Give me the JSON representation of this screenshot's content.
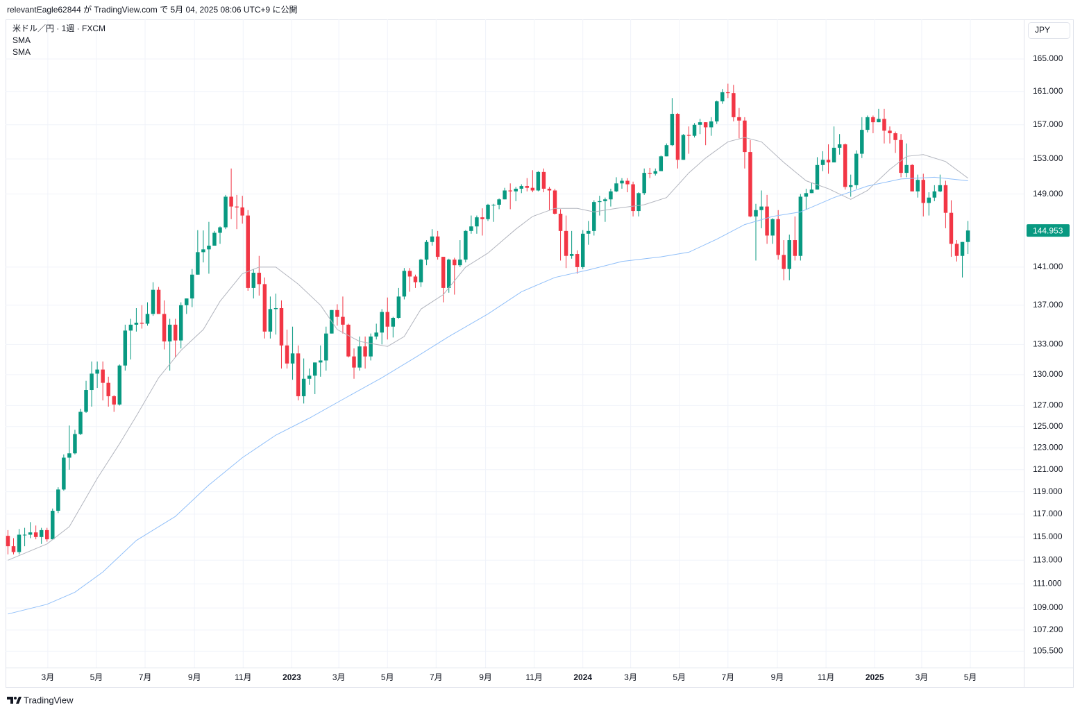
{
  "header": "relevantEagle62844 が TradingView.com で 5月 04, 2025 08:06 UTC+9 に公開",
  "footer_brand": "TradingView",
  "chart_data": {
    "type": "candlestick",
    "title": "米ドル／円 · 1週 · FXCM",
    "currency": "JPY",
    "up_color": "#089981",
    "down_color": "#f23645",
    "log_scale": true,
    "grid": true,
    "last_price_label": "144.953",
    "x": [
      "2022-01-10",
      "2022-01-17",
      "2022-01-24",
      "2022-01-31",
      "2022-02-07",
      "2022-02-14",
      "2022-02-21",
      "2022-02-28",
      "2022-03-07",
      "2022-03-14",
      "2022-03-21",
      "2022-03-28",
      "2022-04-04",
      "2022-04-11",
      "2022-04-18",
      "2022-04-25",
      "2022-05-02",
      "2022-05-09",
      "2022-05-16",
      "2022-05-23",
      "2022-05-30",
      "2022-06-06",
      "2022-06-13",
      "2022-06-20",
      "2022-06-27",
      "2022-07-04",
      "2022-07-11",
      "2022-07-18",
      "2022-07-25",
      "2022-08-01",
      "2022-08-08",
      "2022-08-15",
      "2022-08-22",
      "2022-08-29",
      "2022-09-05",
      "2022-09-12",
      "2022-09-19",
      "2022-09-26",
      "2022-10-03",
      "2022-10-10",
      "2022-10-17",
      "2022-10-24",
      "2022-10-31",
      "2022-11-07",
      "2022-11-14",
      "2022-11-21",
      "2022-11-28",
      "2022-12-05",
      "2022-12-12",
      "2022-12-19",
      "2022-12-26",
      "2023-01-02",
      "2023-01-09",
      "2023-01-16",
      "2023-01-23",
      "2023-01-30",
      "2023-02-06",
      "2023-02-13",
      "2023-02-20",
      "2023-02-27",
      "2023-03-06",
      "2023-03-13",
      "2023-03-20",
      "2023-03-27",
      "2023-04-03",
      "2023-04-10",
      "2023-04-17",
      "2023-04-24",
      "2023-05-01",
      "2023-05-08",
      "2023-05-15",
      "2023-05-22",
      "2023-05-29",
      "2023-06-05",
      "2023-06-12",
      "2023-06-19",
      "2023-06-26",
      "2023-07-03",
      "2023-07-10",
      "2023-07-17",
      "2023-07-24",
      "2023-07-31",
      "2023-08-07",
      "2023-08-14",
      "2023-08-21",
      "2023-08-28",
      "2023-09-04",
      "2023-09-11",
      "2023-09-18",
      "2023-09-25",
      "2023-10-02",
      "2023-10-09",
      "2023-10-16",
      "2023-10-23",
      "2023-10-30",
      "2023-11-06",
      "2023-11-13",
      "2023-11-20",
      "2023-11-27",
      "2023-12-04",
      "2023-12-11",
      "2023-12-18",
      "2023-12-25",
      "2024-01-01",
      "2024-01-08",
      "2024-01-15",
      "2024-01-22",
      "2024-01-29",
      "2024-02-05",
      "2024-02-12",
      "2024-02-19",
      "2024-02-26",
      "2024-03-04",
      "2024-03-11",
      "2024-03-18",
      "2024-03-25",
      "2024-04-01",
      "2024-04-08",
      "2024-04-15",
      "2024-04-22",
      "2024-04-29",
      "2024-05-06",
      "2024-05-13",
      "2024-05-20",
      "2024-05-27",
      "2024-06-03",
      "2024-06-10",
      "2024-06-17",
      "2024-06-24",
      "2024-07-01",
      "2024-07-08",
      "2024-07-15",
      "2024-07-22",
      "2024-07-29",
      "2024-08-05",
      "2024-08-12",
      "2024-08-19",
      "2024-08-26",
      "2024-09-02",
      "2024-09-09",
      "2024-09-16",
      "2024-09-23",
      "2024-09-30",
      "2024-10-07",
      "2024-10-14",
      "2024-10-21",
      "2024-10-28",
      "2024-11-04",
      "2024-11-11",
      "2024-11-18",
      "2024-11-25",
      "2024-12-02",
      "2024-12-09",
      "2024-12-16",
      "2024-12-23",
      "2024-12-30",
      "2025-01-06",
      "2025-01-13",
      "2025-01-20",
      "2025-01-27",
      "2025-02-03",
      "2025-02-10",
      "2025-02-17",
      "2025-02-24",
      "2025-03-03",
      "2025-03-10",
      "2025-03-17",
      "2025-03-24",
      "2025-03-31",
      "2025-04-07",
      "2025-04-14",
      "2025-04-21",
      "2025-04-28"
    ],
    "open": [
      115.1,
      114.2,
      113.7,
      115.2,
      115.2,
      115.4,
      115.0,
      115.6,
      114.8,
      117.3,
      119.2,
      122.1,
      122.5,
      124.3,
      126.4,
      128.5,
      130.1,
      130.5,
      129.2,
      127.9,
      127.1,
      130.9,
      134.4,
      135.0,
      135.2,
      135.1,
      136.1,
      138.6,
      136.1,
      133.3,
      135.0,
      133.4,
      137.0,
      137.7,
      140.2,
      142.6,
      142.9,
      143.3,
      144.7,
      145.3,
      148.7,
      147.6,
      147.5,
      146.6,
      138.8,
      140.4,
      139.2,
      134.3,
      136.6,
      136.7,
      132.9,
      131.1,
      132.1,
      127.9,
      129.6,
      129.9,
      131.2,
      131.4,
      134.1,
      136.5,
      135.8,
      135.0,
      131.8,
      130.7,
      132.8,
      131.8,
      133.8,
      134.2,
      136.3,
      134.8,
      135.7,
      137.9,
      140.6,
      140.0,
      139.4,
      141.8,
      143.7,
      144.3,
      142.1,
      138.8,
      141.8,
      141.2,
      141.8,
      144.9,
      145.4,
      146.4,
      146.2,
      147.8,
      147.8,
      148.4,
      149.4,
      149.3,
      149.6,
      149.9,
      149.7,
      149.4,
      151.5,
      149.6,
      149.4,
      146.8,
      144.9,
      142.2,
      142.4,
      141.0,
      144.6,
      144.9,
      148.1,
      148.2,
      148.4,
      149.3,
      150.2,
      150.5,
      150.1,
      147.1,
      149.1,
      151.4,
      151.3,
      151.6,
      153.3,
      154.6,
      158.3,
      152.9,
      155.8,
      155.7,
      157.0,
      157.3,
      156.7,
      157.4,
      159.8,
      160.9,
      160.8,
      157.9,
      157.5,
      153.8,
      146.5,
      147.2,
      147.6,
      144.4,
      146.2,
      142.3,
      140.8,
      143.9,
      142.2,
      148.7,
      149.1,
      149.5,
      152.3,
      152.9,
      152.6,
      154.3,
      154.7,
      149.8,
      150.0,
      153.6,
      156.4,
      157.9,
      157.3,
      157.7,
      156.3,
      156.0,
      155.2,
      151.4,
      152.3,
      149.3,
      150.6,
      148.0,
      148.6,
      149.3,
      150.0,
      146.9,
      143.5,
      142.2,
      143.7
    ],
    "high": [
      115.6,
      114.9,
      115.7,
      115.8,
      116.3,
      116.0,
      115.8,
      115.8,
      117.5,
      119.4,
      122.4,
      125.1,
      124.7,
      126.7,
      129.4,
      131.3,
      131.3,
      131.3,
      129.8,
      128.0,
      131.0,
      135.0,
      135.6,
      136.7,
      137.0,
      137.3,
      139.4,
      138.9,
      137.5,
      135.6,
      135.6,
      137.3,
      137.7,
      140.8,
      144.99,
      144.96,
      145.9,
      144.9,
      145.4,
      148.9,
      151.9,
      148.9,
      148.8,
      147.2,
      140.8,
      142.2,
      139.9,
      137.9,
      138.2,
      137.5,
      134.5,
      134.8,
      132.9,
      131.6,
      130.6,
      131.2,
      132.9,
      134.8,
      136.5,
      137.1,
      137.9,
      135.1,
      132.6,
      133.8,
      133.8,
      134.1,
      135.1,
      136.6,
      137.8,
      135.8,
      138.8,
      140.9,
      140.9,
      140.2,
      141.9,
      143.9,
      145.1,
      144.9,
      142.1,
      141.9,
      142.0,
      143.9,
      145.0,
      146.6,
      146.6,
      147.4,
      147.9,
      147.9,
      148.5,
      149.7,
      150.2,
      149.8,
      150.1,
      150.8,
      151.7,
      151.6,
      151.9,
      149.8,
      149.6,
      147.3,
      146.6,
      144.9,
      142.8,
      145.0,
      146.0,
      148.3,
      148.8,
      148.6,
      149.6,
      150.9,
      150.8,
      150.8,
      150.4,
      149.2,
      151.9,
      151.97,
      151.9,
      153.4,
      154.8,
      160.2,
      158.4,
      155.9,
      156.8,
      157.2,
      157.7,
      157.3,
      157.9,
      159.9,
      161.3,
      161.95,
      161.8,
      159.0,
      157.9,
      155.2,
      147.9,
      149.4,
      148.9,
      146.3,
      147.2,
      143.9,
      144.5,
      146.5,
      149.0,
      149.6,
      150.3,
      153.2,
      153.9,
      154.7,
      156.8,
      155.9,
      154.8,
      151.2,
      154.0,
      157.9,
      158.1,
      158.1,
      158.9,
      158.9,
      156.8,
      156.2,
      155.9,
      154.8,
      152.4,
      151.2,
      151.3,
      149.2,
      150.0,
      151.2,
      150.5,
      148.3,
      143.9,
      143.7,
      146.0
    ],
    "low": [
      113.5,
      113.5,
      113.5,
      114.2,
      114.9,
      114.8,
      114.4,
      114.6,
      114.8,
      117.1,
      119.1,
      121.0,
      122.4,
      124.2,
      126.3,
      126.9,
      128.7,
      127.5,
      126.9,
      126.4,
      127.0,
      130.4,
      131.5,
      134.3,
      134.6,
      134.9,
      135.9,
      136.5,
      132.5,
      130.4,
      131.7,
      132.6,
      136.1,
      136.8,
      140.2,
      141.5,
      140.3,
      143.3,
      143.5,
      145.1,
      146.2,
      145.1,
      145.7,
      138.5,
      137.7,
      138.0,
      133.6,
      133.6,
      134.0,
      130.6,
      130.6,
      129.5,
      127.5,
      127.2,
      129.0,
      128.1,
      129.8,
      130.4,
      134.1,
      134.9,
      134.1,
      131.7,
      129.6,
      130.4,
      130.6,
      131.4,
      133.5,
      133.0,
      133.5,
      133.7,
      135.6,
      137.6,
      138.4,
      138.8,
      138.9,
      141.2,
      143.3,
      141.8,
      137.3,
      138.3,
      138.1,
      141.0,
      141.5,
      144.6,
      144.6,
      144.4,
      146.0,
      145.9,
      147.3,
      148.4,
      147.3,
      148.2,
      149.1,
      149.3,
      149.2,
      149.3,
      149.2,
      147.2,
      146.7,
      141.7,
      140.9,
      141.9,
      140.3,
      140.8,
      143.4,
      144.4,
      146.6,
      145.9,
      147.6,
      149.2,
      149.6,
      149.2,
      146.5,
      146.5,
      148.9,
      150.8,
      151.1,
      151.6,
      153.3,
      154.5,
      151.9,
      152.9,
      153.6,
      155.5,
      155.9,
      154.6,
      155.7,
      157.1,
      159.5,
      160.2,
      157.4,
      155.4,
      151.9,
      146.4,
      141.7,
      145.2,
      143.5,
      143.5,
      141.8,
      139.6,
      139.6,
      141.7,
      141.7,
      147.3,
      149.1,
      149.5,
      151.6,
      151.3,
      152.6,
      153.5,
      149.5,
      148.7,
      149.6,
      153.1,
      156.1,
      156.0,
      157.3,
      154.8,
      154.8,
      153.7,
      150.9,
      150.9,
      149.3,
      148.6,
      146.5,
      146.6,
      148.2,
      149.2,
      145.2,
      142.1,
      141.6,
      139.9,
      142.4
    ],
    "close": [
      114.2,
      113.7,
      115.2,
      115.2,
      115.4,
      115.0,
      115.6,
      114.8,
      117.3,
      119.2,
      122.1,
      122.5,
      124.3,
      126.4,
      128.5,
      130.1,
      130.5,
      129.2,
      127.9,
      127.1,
      130.9,
      134.4,
      135.0,
      135.2,
      135.1,
      136.1,
      138.6,
      136.1,
      133.3,
      135.0,
      133.4,
      137.0,
      137.7,
      140.2,
      142.6,
      142.9,
      143.3,
      144.7,
      145.3,
      148.7,
      147.6,
      147.5,
      146.6,
      138.8,
      140.4,
      139.2,
      134.3,
      136.6,
      136.7,
      132.9,
      131.1,
      132.1,
      127.9,
      129.6,
      129.9,
      131.2,
      131.4,
      134.1,
      136.5,
      135.8,
      135.0,
      131.8,
      130.7,
      132.8,
      131.8,
      133.8,
      134.2,
      136.3,
      134.8,
      135.7,
      137.9,
      140.6,
      140.0,
      139.4,
      141.8,
      143.7,
      144.3,
      142.1,
      138.8,
      141.8,
      141.2,
      141.8,
      144.9,
      145.4,
      146.4,
      146.2,
      147.8,
      147.8,
      148.4,
      149.4,
      149.3,
      149.6,
      149.9,
      149.7,
      149.4,
      151.5,
      149.6,
      149.4,
      146.8,
      144.9,
      142.2,
      142.4,
      141.0,
      144.6,
      144.9,
      148.1,
      148.2,
      148.4,
      149.3,
      150.2,
      150.5,
      150.1,
      147.1,
      149.1,
      151.4,
      151.3,
      151.6,
      153.3,
      154.6,
      158.3,
      152.9,
      155.8,
      155.7,
      157.0,
      157.3,
      156.7,
      157.4,
      159.8,
      160.9,
      160.8,
      157.9,
      157.5,
      153.8,
      146.5,
      147.2,
      147.6,
      144.4,
      146.2,
      142.3,
      140.8,
      143.9,
      142.2,
      148.7,
      149.1,
      149.5,
      152.3,
      152.9,
      152.6,
      154.3,
      154.7,
      149.8,
      150.0,
      153.6,
      156.4,
      157.9,
      157.3,
      157.7,
      156.3,
      156.0,
      155.2,
      151.4,
      152.3,
      149.3,
      150.6,
      148.0,
      148.6,
      149.3,
      150.0,
      146.9,
      143.5,
      142.2,
      143.7,
      144.953
    ],
    "lines": [
      {
        "name": "SMA",
        "color": "#b2b5be",
        "x": [
          "2022-01-10",
          "2022-02-28",
          "2022-03-28",
          "2022-05-02",
          "2022-05-30",
          "2022-06-20",
          "2022-07-18",
          "2022-08-15",
          "2022-09-12",
          "2022-10-03",
          "2022-10-31",
          "2022-11-21",
          "2022-12-12",
          "2023-01-09",
          "2023-02-06",
          "2023-02-27",
          "2023-03-27",
          "2023-05-01",
          "2023-05-22",
          "2023-06-12",
          "2023-07-10",
          "2023-08-07",
          "2023-09-04",
          "2023-10-09",
          "2023-10-30",
          "2023-11-27",
          "2023-12-25",
          "2024-01-15",
          "2024-02-12",
          "2024-03-18",
          "2024-04-15",
          "2024-05-13",
          "2024-06-03",
          "2024-07-01",
          "2024-07-22",
          "2024-08-12",
          "2024-09-09",
          "2024-10-07",
          "2024-11-04",
          "2024-12-02",
          "2024-12-23",
          "2025-01-20",
          "2025-02-10",
          "2025-03-03",
          "2025-03-31",
          "2025-04-28"
        ],
        "values": [
          113.0,
          114.4,
          115.9,
          120.2,
          123.4,
          126.0,
          129.7,
          132.4,
          134.5,
          137.4,
          140.3,
          141.0,
          141.0,
          139.2,
          137.0,
          134.5,
          133.3,
          132.8,
          133.8,
          136.6,
          138.1,
          141.0,
          142.5,
          145.1,
          146.5,
          147.4,
          147.4,
          147.0,
          147.4,
          147.8,
          148.6,
          151.4,
          153.1,
          155.0,
          155.5,
          155.0,
          152.6,
          150.5,
          149.6,
          148.4,
          149.4,
          151.8,
          153.3,
          153.5,
          152.7,
          150.8
        ]
      },
      {
        "name": "SMA",
        "color": "#90bff9",
        "x": [
          "2022-01-10",
          "2022-02-28",
          "2022-04-04",
          "2022-05-09",
          "2022-06-20",
          "2022-08-08",
          "2022-09-19",
          "2022-10-31",
          "2022-12-12",
          "2023-01-23",
          "2023-03-13",
          "2023-04-24",
          "2023-06-05",
          "2023-07-17",
          "2023-09-04",
          "2023-10-16",
          "2023-11-27",
          "2024-01-08",
          "2024-02-19",
          "2024-04-08",
          "2024-05-13",
          "2024-06-17",
          "2024-07-22",
          "2024-08-26",
          "2024-09-30",
          "2024-11-11",
          "2024-12-23",
          "2025-02-03",
          "2025-03-17",
          "2025-04-28"
        ],
        "values": [
          108.5,
          109.3,
          110.3,
          112.0,
          114.7,
          116.8,
          119.6,
          122.1,
          124.2,
          125.8,
          127.9,
          129.7,
          131.7,
          133.8,
          136.1,
          138.4,
          139.9,
          140.7,
          141.6,
          142.1,
          142.6,
          144.0,
          145.6,
          146.5,
          147.0,
          148.6,
          149.9,
          150.7,
          150.9,
          150.5
        ]
      }
    ],
    "xlim": [
      "2022-01-07",
      "2025-07-07"
    ],
    "xticks": [
      {
        "value": "2022-03-01",
        "label": "3月"
      },
      {
        "value": "2022-05-01",
        "label": "5月"
      },
      {
        "value": "2022-07-01",
        "label": "7月"
      },
      {
        "value": "2022-09-01",
        "label": "9月"
      },
      {
        "value": "2022-11-01",
        "label": "11月"
      },
      {
        "value": "2023-01-01",
        "label": "2023"
      },
      {
        "value": "2023-03-01",
        "label": "3月"
      },
      {
        "value": "2023-05-01",
        "label": "5月"
      },
      {
        "value": "2023-07-01",
        "label": "7月"
      },
      {
        "value": "2023-09-01",
        "label": "9月"
      },
      {
        "value": "2023-11-01",
        "label": "11月"
      },
      {
        "value": "2024-01-01",
        "label": "2024"
      },
      {
        "value": "2024-03-01",
        "label": "3月"
      },
      {
        "value": "2024-05-01",
        "label": "5月"
      },
      {
        "value": "2024-07-01",
        "label": "7月"
      },
      {
        "value": "2024-09-01",
        "label": "9月"
      },
      {
        "value": "2024-11-01",
        "label": "11月"
      },
      {
        "value": "2025-01-01",
        "label": "2025"
      },
      {
        "value": "2025-03-01",
        "label": "3月"
      },
      {
        "value": "2025-05-01",
        "label": "5月"
      }
    ],
    "ylim": [
      104.2,
      170
    ],
    "yticks": [
      {
        "value": 165,
        "label": "165.000"
      },
      {
        "value": 161,
        "label": "161.000"
      },
      {
        "value": 157,
        "label": "157.000"
      },
      {
        "value": 153,
        "label": "153.000"
      },
      {
        "value": 149,
        "label": "149.000"
      },
      {
        "value": 141,
        "label": "141.000"
      },
      {
        "value": 137,
        "label": "137.000"
      },
      {
        "value": 133,
        "label": "133.000"
      },
      {
        "value": 130,
        "label": "130.000"
      },
      {
        "value": 127,
        "label": "127.000"
      },
      {
        "value": 125,
        "label": "125.000"
      },
      {
        "value": 123,
        "label": "123.000"
      },
      {
        "value": 121,
        "label": "121.000"
      },
      {
        "value": 119,
        "label": "119.000"
      },
      {
        "value": 117,
        "label": "117.000"
      },
      {
        "value": 115,
        "label": "115.000"
      },
      {
        "value": 113,
        "label": "113.000"
      },
      {
        "value": 111,
        "label": "111.000"
      },
      {
        "value": 109,
        "label": "109.000"
      },
      {
        "value": 107.2,
        "label": "107.200"
      },
      {
        "value": 105.5,
        "label": "105.500"
      }
    ]
  }
}
